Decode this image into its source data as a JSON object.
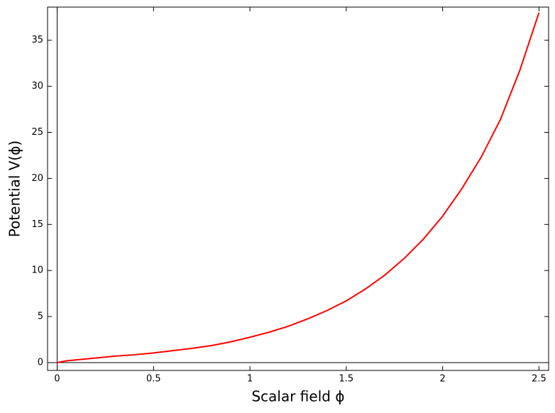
{
  "chart_data": {
    "type": "line",
    "x_label": "Scalar field ϕ",
    "y_label": "Potential V(ϕ)",
    "x": [
      0,
      0.05,
      0.1,
      0.2,
      0.3,
      0.4,
      0.5,
      0.6,
      0.7,
      0.8,
      0.9,
      1.0,
      1.1,
      1.2,
      1.3,
      1.4,
      1.5,
      1.6,
      1.7,
      1.8,
      1.9,
      2.0,
      2.1,
      2.2,
      2.3,
      2.4,
      2.5
    ],
    "series": [
      {
        "color": "#ff0000",
        "values": [
          0,
          0.2,
          0.3,
          0.5,
          0.7,
          0.85,
          1.05,
          1.3,
          1.55,
          1.85,
          2.25,
          2.75,
          3.3,
          3.95,
          4.75,
          5.65,
          6.7,
          8.0,
          9.5,
          11.3,
          13.4,
          15.9,
          18.9,
          22.3,
          26.4,
          31.7,
          38
        ]
      }
    ],
    "xlim": [
      -0.05,
      2.55
    ],
    "ylim": [
      -0.85,
      38.6
    ],
    "xticks": [
      0,
      0.5,
      1,
      1.5,
      2,
      2.5
    ],
    "yticks": [
      0,
      5,
      10,
      15,
      20,
      25,
      30,
      35
    ],
    "grid": false
  }
}
